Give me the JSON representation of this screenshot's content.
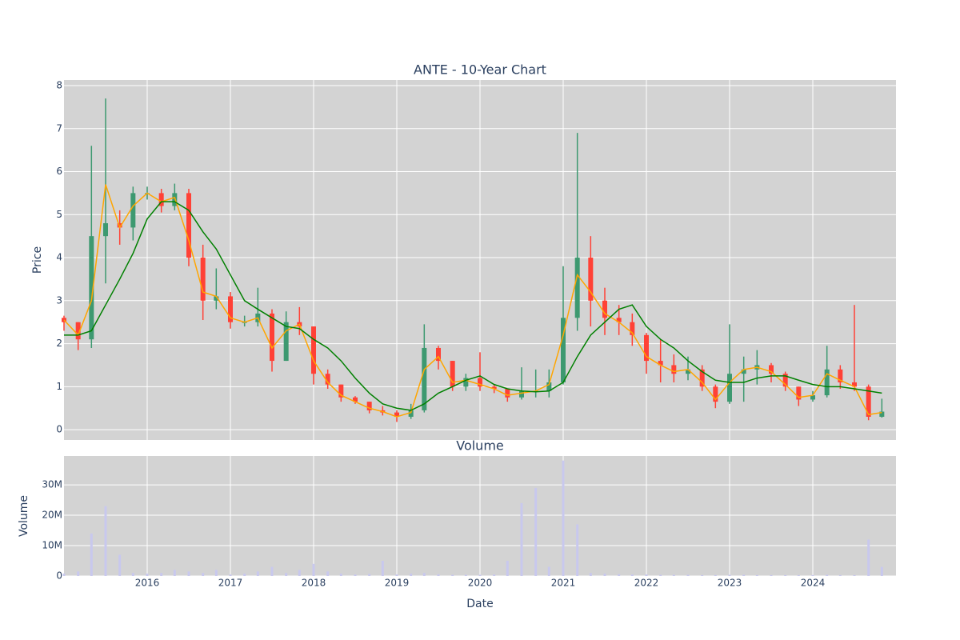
{
  "chart_data": [
    {
      "type": "candlestick",
      "title": "ANTE - 10-Year Chart",
      "ylabel": "Price",
      "x": [
        2015,
        2015.17,
        2015.33,
        2015.5,
        2015.67,
        2015.83,
        2016,
        2016.17,
        2016.33,
        2016.5,
        2016.67,
        2016.83,
        2017,
        2017.17,
        2017.33,
        2017.5,
        2017.67,
        2017.83,
        2018,
        2018.17,
        2018.33,
        2018.5,
        2018.67,
        2018.83,
        2019,
        2019.17,
        2019.33,
        2019.5,
        2019.67,
        2019.83,
        2020,
        2020.17,
        2020.33,
        2020.5,
        2020.67,
        2020.83,
        2021,
        2021.17,
        2021.33,
        2021.5,
        2021.67,
        2021.83,
        2022,
        2022.17,
        2022.33,
        2022.5,
        2022.67,
        2022.83,
        2023,
        2023.17,
        2023.33,
        2023.5,
        2023.67,
        2023.83,
        2024,
        2024.17,
        2024.33,
        2024.5,
        2024.67,
        2024.83
      ],
      "open": [
        2.6,
        2.5,
        2.1,
        4.5,
        4.8,
        4.7,
        5.5,
        5.5,
        5.2,
        5.5,
        4.0,
        3.0,
        3.1,
        2.5,
        2.5,
        2.7,
        1.6,
        2.5,
        2.4,
        1.3,
        1.05,
        0.75,
        0.65,
        0.45,
        0.4,
        0.3,
        0.45,
        1.9,
        1.6,
        1.0,
        1.2,
        1.0,
        0.95,
        0.75,
        0.9,
        0.9,
        1.1,
        2.6,
        4.0,
        3.0,
        2.6,
        2.5,
        2.2,
        1.6,
        1.5,
        1.3,
        1.4,
        1.0,
        0.65,
        1.3,
        1.4,
        1.5,
        1.3,
        1.0,
        0.7,
        0.8,
        1.4,
        1.1,
        1.0,
        0.3
      ],
      "high": [
        2.65,
        2.5,
        6.6,
        7.7,
        5.1,
        5.65,
        5.65,
        5.6,
        5.72,
        5.6,
        4.3,
        3.75,
        3.2,
        2.65,
        3.3,
        2.8,
        2.75,
        2.85,
        2.4,
        1.4,
        1.05,
        0.78,
        0.65,
        0.55,
        0.45,
        0.6,
        2.45,
        1.95,
        1.6,
        1.3,
        1.8,
        1.05,
        0.95,
        1.45,
        1.4,
        1.4,
        3.8,
        6.9,
        4.5,
        3.3,
        2.9,
        2.7,
        2.25,
        2.1,
        1.75,
        1.7,
        1.5,
        1.05,
        2.45,
        1.7,
        1.85,
        1.55,
        1.35,
        1.0,
        0.9,
        1.95,
        1.5,
        2.9,
        1.05,
        0.72
      ],
      "low": [
        2.3,
        1.85,
        1.9,
        3.4,
        4.3,
        4.4,
        5.35,
        5.05,
        5.1,
        3.8,
        2.55,
        2.8,
        2.35,
        2.4,
        2.4,
        1.35,
        1.6,
        2.2,
        1.05,
        0.95,
        0.65,
        0.6,
        0.38,
        0.33,
        0.18,
        0.25,
        0.4,
        1.4,
        0.9,
        0.9,
        0.9,
        0.85,
        0.65,
        0.7,
        0.75,
        0.75,
        1.05,
        2.3,
        2.4,
        2.2,
        2.2,
        1.95,
        1.3,
        1.1,
        1.1,
        1.15,
        0.9,
        0.5,
        0.6,
        0.65,
        1.05,
        1.1,
        0.9,
        0.55,
        0.65,
        0.75,
        0.95,
        0.9,
        0.22,
        0.28
      ],
      "close": [
        2.5,
        2.1,
        4.5,
        4.8,
        4.7,
        5.5,
        5.5,
        5.2,
        5.5,
        4.0,
        3.0,
        3.1,
        2.5,
        2.5,
        2.7,
        1.6,
        2.5,
        2.4,
        1.3,
        1.05,
        0.75,
        0.65,
        0.45,
        0.4,
        0.3,
        0.45,
        1.9,
        1.6,
        1.0,
        1.2,
        1.0,
        0.95,
        0.75,
        0.9,
        0.9,
        1.1,
        2.6,
        4.0,
        3.0,
        2.6,
        2.5,
        2.2,
        1.6,
        1.5,
        1.3,
        1.4,
        1.0,
        0.65,
        1.3,
        1.4,
        1.5,
        1.3,
        1.0,
        0.7,
        0.8,
        1.4,
        1.1,
        1.0,
        0.3,
        0.42
      ],
      "increasing_color": "#3d9970",
      "decreasing_color": "#ff4136",
      "series": [
        {
          "color": "#ffa500",
          "values": [
            2.55,
            2.2,
            3.0,
            5.7,
            4.7,
            5.2,
            5.5,
            5.3,
            5.4,
            4.4,
            3.2,
            3.1,
            2.6,
            2.5,
            2.6,
            1.9,
            2.3,
            2.45,
            1.6,
            1.1,
            0.8,
            0.65,
            0.5,
            0.42,
            0.3,
            0.4,
            1.4,
            1.7,
            1.1,
            1.15,
            1.05,
            0.95,
            0.8,
            0.85,
            0.9,
            1.05,
            2.2,
            3.6,
            3.2,
            2.7,
            2.5,
            2.25,
            1.7,
            1.5,
            1.35,
            1.4,
            1.1,
            0.7,
            1.1,
            1.4,
            1.45,
            1.35,
            1.05,
            0.75,
            0.8,
            1.3,
            1.15,
            1.0,
            0.35,
            0.4
          ]
        },
        {
          "color": "#008000",
          "values": [
            2.2,
            2.2,
            2.3,
            2.9,
            3.5,
            4.1,
            4.9,
            5.3,
            5.3,
            5.1,
            4.6,
            4.2,
            3.6,
            3.0,
            2.8,
            2.6,
            2.4,
            2.35,
            2.1,
            1.9,
            1.6,
            1.2,
            0.85,
            0.6,
            0.5,
            0.45,
            0.6,
            0.85,
            1.0,
            1.15,
            1.25,
            1.05,
            0.95,
            0.9,
            0.88,
            0.9,
            1.1,
            1.7,
            2.2,
            2.5,
            2.8,
            2.9,
            2.4,
            2.1,
            1.9,
            1.6,
            1.35,
            1.15,
            1.1,
            1.1,
            1.2,
            1.25,
            1.25,
            1.15,
            1.05,
            1.0,
            1.0,
            0.95,
            0.9,
            0.85
          ]
        }
      ],
      "xlim": [
        2015,
        2025
      ],
      "xticks": [
        2016,
        2017,
        2018,
        2019,
        2020,
        2021,
        2022,
        2023,
        2024
      ],
      "show_xticklabels": false,
      "ylim": [
        -0.24,
        8.13
      ],
      "yticks": [
        0,
        1,
        2,
        3,
        4,
        5,
        6,
        7,
        8
      ],
      "grid": true
    },
    {
      "type": "bar",
      "title": "Volume",
      "ylabel": "Volume",
      "xlabel": "Date",
      "color": "#c8c8ee",
      "x": [
        2015,
        2015.17,
        2015.33,
        2015.5,
        2015.67,
        2015.83,
        2016,
        2016.17,
        2016.33,
        2016.5,
        2016.67,
        2016.83,
        2017,
        2017.17,
        2017.33,
        2017.5,
        2017.67,
        2017.83,
        2018,
        2018.17,
        2018.33,
        2018.5,
        2018.67,
        2018.83,
        2019,
        2019.17,
        2019.33,
        2019.5,
        2019.67,
        2019.83,
        2020,
        2020.17,
        2020.33,
        2020.5,
        2020.67,
        2020.83,
        2021,
        2021.17,
        2021.33,
        2021.5,
        2021.67,
        2021.83,
        2022,
        2022.17,
        2022.33,
        2022.5,
        2022.67,
        2022.83,
        2023,
        2023.17,
        2023.33,
        2023.5,
        2023.67,
        2023.83,
        2024,
        2024.17,
        2024.33,
        2024.5,
        2024.67,
        2024.83
      ],
      "values": [
        800000,
        1500000,
        14000000,
        23000000,
        7000000,
        1000000,
        800000,
        1000000,
        2000000,
        1500000,
        1000000,
        2000000,
        500000,
        800000,
        1500000,
        3000000,
        1000000,
        2000000,
        4000000,
        1500000,
        800000,
        500000,
        700000,
        5000000,
        500000,
        800000,
        1000000,
        600000,
        400000,
        400000,
        400000,
        500000,
        5000000,
        24000000,
        29000000,
        3000000,
        38000000,
        17000000,
        1000000,
        800000,
        600000,
        500000,
        500000,
        400000,
        400000,
        400000,
        300000,
        300000,
        400000,
        400000,
        300000,
        300000,
        300000,
        300000,
        300000,
        400000,
        300000,
        300000,
        12000000,
        3000000
      ],
      "xlim": [
        2015,
        2025
      ],
      "xticks": [
        2016,
        2017,
        2018,
        2019,
        2020,
        2021,
        2022,
        2023,
        2024
      ],
      "show_xticklabels": true,
      "ylim": [
        0,
        39500000
      ],
      "yticks": [
        0,
        {
          "value": 10000000,
          "label": "10M"
        },
        {
          "value": 20000000,
          "label": "20M"
        },
        {
          "value": 30000000,
          "label": "30M"
        }
      ],
      "grid": true
    }
  ]
}
